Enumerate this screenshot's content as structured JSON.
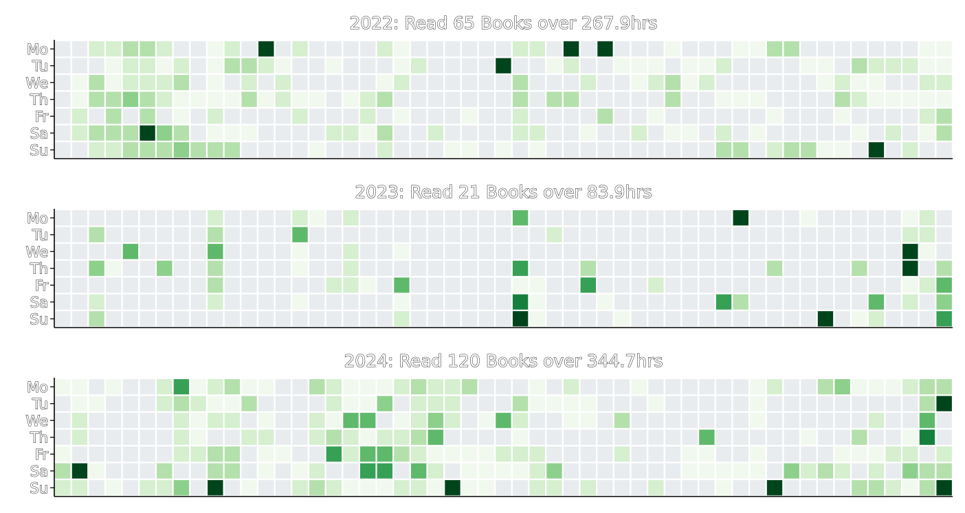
{
  "chart_data": [
    {
      "type": "heatmap",
      "title": "2022: Read 65 Books over 267.9hrs",
      "ytick_labels": [
        "Mo",
        "Tu",
        "We",
        "Th",
        "Fr",
        "Sa",
        "Su"
      ],
      "weeks": 53,
      "colormap": "Greens",
      "value_range": [
        0,
        8
      ],
      "grid": "white cell separators",
      "rows": [
        "00223320012080200002100000022080800010001133000000011",
        "00012212013321001000120000800120011101120000110322211",
        "01312223010202000001200000030002001231200000012110022",
        "01334321111312110123000000030330000030011100003211111",
        "02030301020000200020100010020000300100000010001000023",
        "02333843011100002213002000022001002011020100000102013",
        "00223334333000010002000110101000000000033023311080200"
      ]
    },
    {
      "type": "heatmap",
      "title": "2023: Read 21 Books over 83.9hrs",
      "ytick_labels": [
        "Mo",
        "Tu",
        "We",
        "Th",
        "Fr",
        "Sa",
        "Su"
      ],
      "weeks": 53,
      "colormap": "Greens",
      "value_range": [
        0,
        8
      ],
      "grid": "white cell separators",
      "rows": [
        "00000000020000210200000000050000000000008000100000120",
        "00300000030000500000000000000200000000000000000000220",
        "00005000050000100200100000000000000000000000000000810",
        "00410040030000100200000000060003000000000030000300803",
        "00000000030000002210500000011006000200000000000000125",
        "00200000020000100000100000071000100000063000000050204",
        "00300000000000000000200000081000010000000000080120006"
      ]
    },
    {
      "type": "heatmap",
      "title": "2024: Read 120 Books over 344.7hrs",
      "ytick_labels": [
        "Mo",
        "Tu",
        "We",
        "Th",
        "Fr",
        "Sa",
        "Su"
      ],
      "weeks": 53,
      "colormap": "Greens",
      "value_range": [
        0,
        8
      ],
      "grid": "white cell separators",
      "rows": [
        "11010026123110032111232230001020001000000120034111233",
        "01100023211300002114022200031111000100000100000000038",
        "02000002122010021550124201520011030000000100000020050",
        "02000002100220023212235000010000000000500000100300170",
        "10000002233011006255321111222000020001100100001112202",
        "38100030033010120066052011112400000001111104232020433",
        "22010224080100232111221811002202000200010080000332138"
      ]
    }
  ],
  "colors": {
    "empty": "#e9ecef",
    "scale": [
      "#e9ecef",
      "#f1f9ef",
      "#d5efcf",
      "#b4e0ac",
      "#8dd08b",
      "#5fb96b",
      "#36a055",
      "#15803c",
      "#00441b"
    ],
    "axis": "#000000",
    "cell_border": "#ffffff"
  }
}
